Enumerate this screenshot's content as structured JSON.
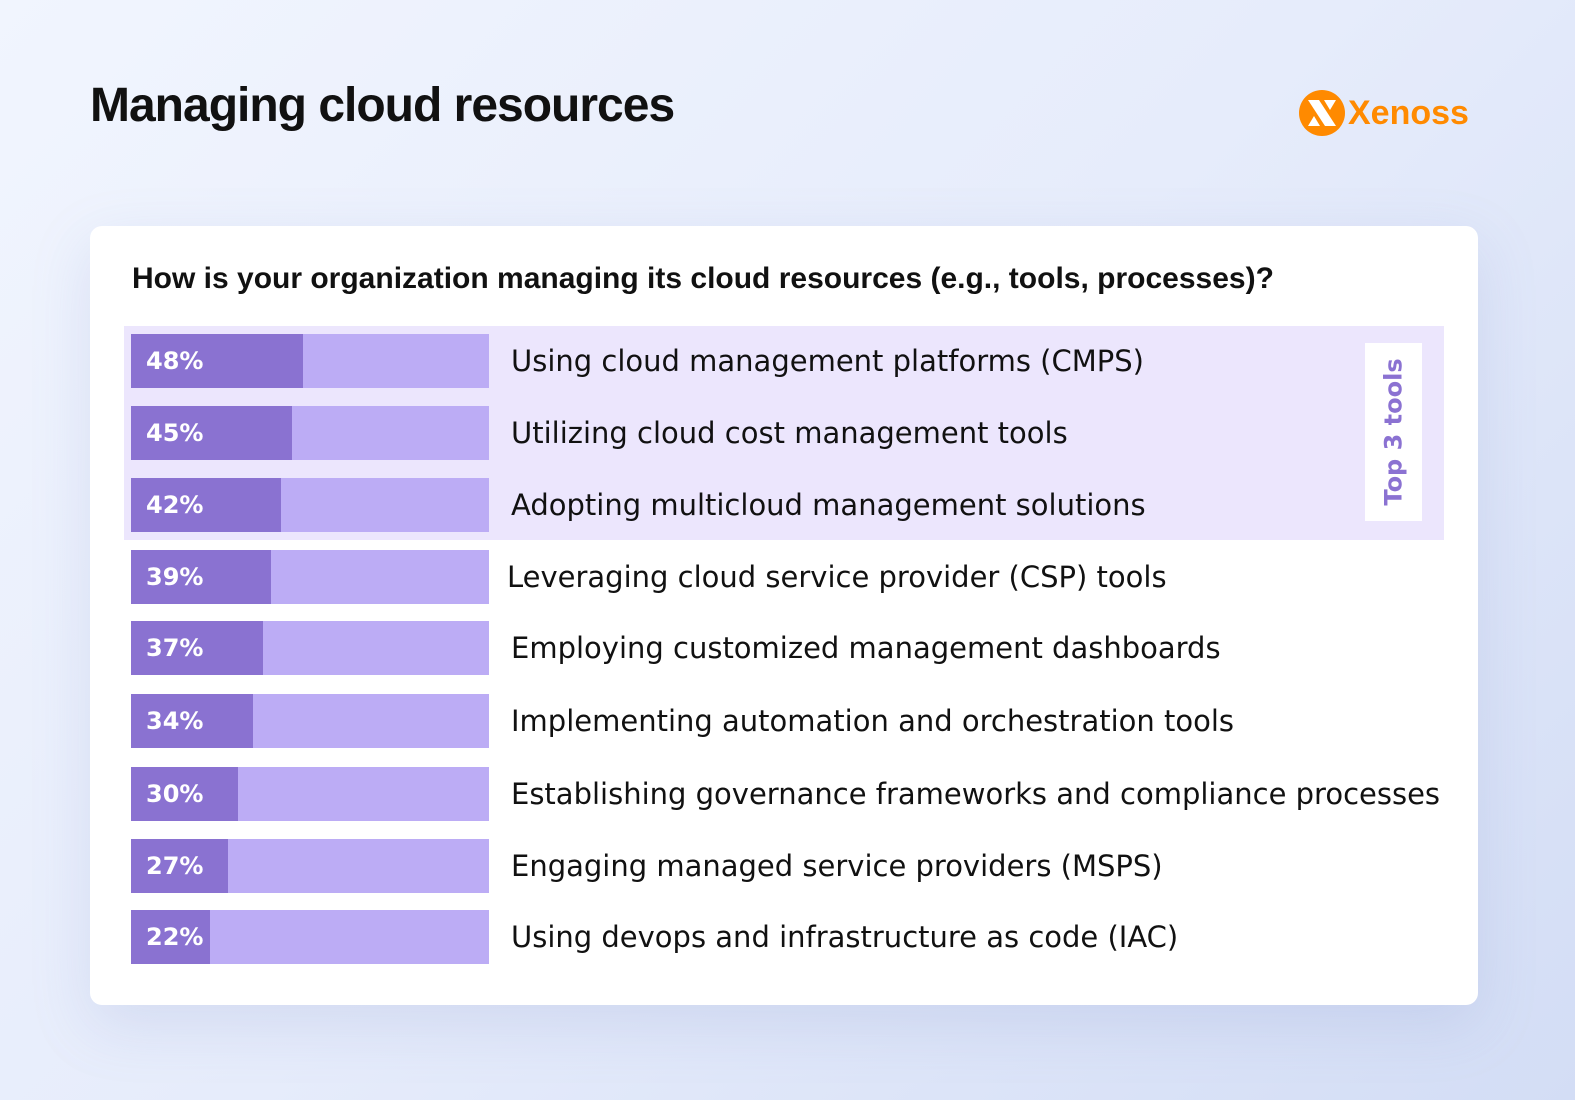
{
  "header": {
    "title": "Managing cloud resources",
    "logo_text": "Xenoss"
  },
  "colors": {
    "fill": "#8a72d1",
    "track": "#bcacf5",
    "highlight": "#ece6fd",
    "brand": "#ff8a00"
  },
  "chart_data": {
    "type": "bar",
    "orientation": "horizontal",
    "title": "How is your organization managing its cloud resources (e.g., tools, processes)?",
    "annotation": "Top 3 tools",
    "xlim": [
      0,
      100
    ],
    "categories": [
      "Using cloud management platforms (CMPS)",
      "Utilizing cloud cost management tools",
      "Adopting multicloud management solutions",
      "Leveraging cloud service provider (CSP) tools",
      "Employing customized management dashboards",
      "Implementing automation and orchestration tools",
      "Establishing governance frameworks and compliance processes",
      "Engaging managed service providers (MSPS)",
      "Using devops and infrastructure as code (IAC)"
    ],
    "values": [
      48,
      45,
      42,
      39,
      37,
      34,
      30,
      27,
      22
    ],
    "value_labels": [
      "48%",
      "45%",
      "42%",
      "39%",
      "37%",
      "34%",
      "30%",
      "27%",
      "22%"
    ]
  }
}
